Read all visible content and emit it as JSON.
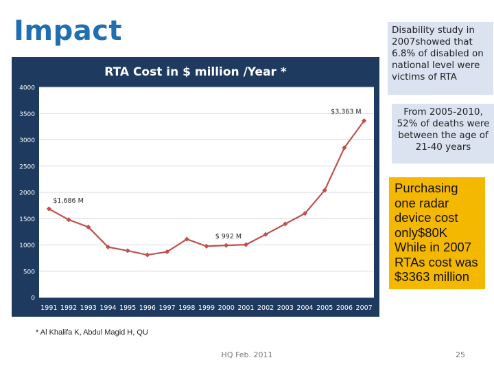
{
  "slide": {
    "title": "Impact",
    "footnote": "* Al Khalifa K, Abdul Magid H, QU",
    "footer": "HQ Feb. 2011",
    "page_number": "25"
  },
  "boxes": {
    "disability": "Disability study in 2007showed that 6.8% of disabled on national level were victims of RTA",
    "deaths": "From 2005-2010, 52% of deaths were between the age of 21-40 years",
    "radar": "Purchasing one radar device cost only$80K While in 2007 RTAs cost was $3363 million"
  },
  "colors": {
    "title": "#1f6fb2",
    "panel": "#1e3a5f",
    "line": "#c0504d",
    "blue_box": "#dbe3f1",
    "orange_box": "#f5b800"
  },
  "chart_data": {
    "type": "line",
    "title": "RTA Cost in $ million /Year *",
    "x": [
      "1991",
      "1992",
      "1993",
      "1994",
      "1995",
      "1996",
      "1997",
      "1998",
      "1999",
      "2000",
      "2001",
      "2002",
      "2003",
      "2004",
      "2005",
      "2006",
      "2007"
    ],
    "series": [
      {
        "values": [
          1686,
          1480,
          1340,
          960,
          890,
          810,
          870,
          1110,
          975,
          992,
          1005,
          1200,
          1400,
          1600,
          2040,
          2850,
          3363
        ]
      }
    ],
    "ylim": [
      0,
      4000
    ],
    "yticks": [
      "0",
      "500",
      "1000",
      "1500",
      "2000",
      "2500",
      "3000",
      "3500",
      "4000"
    ],
    "annotations": [
      {
        "x": "1991",
        "text": "$1,686 M"
      },
      {
        "x": "2000",
        "text": "$ 992 M"
      },
      {
        "x": "2007",
        "text": "$3,363 M"
      }
    ],
    "grid": true,
    "legend": "none"
  }
}
